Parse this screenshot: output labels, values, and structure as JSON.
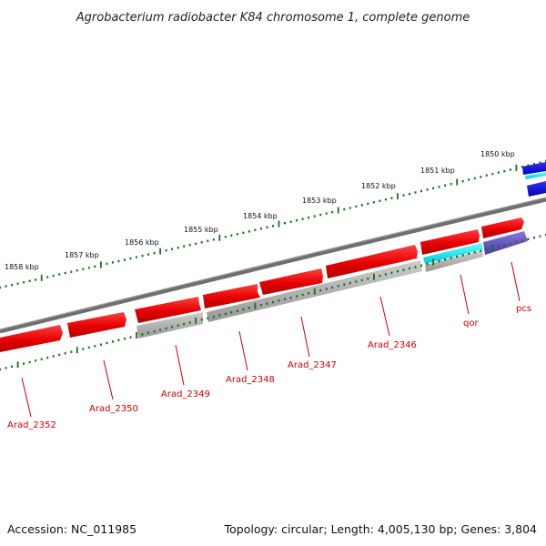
{
  "title": "Agrobacterium radiobacter K84 chromosome 1, complete genome",
  "footer": {
    "accession": "Accession: NC_011985",
    "summary": "Topology: circular; Length: 4,005,130 bp; Genes: 3,804"
  },
  "kbp_labels": [
    "1850 kbp",
    "1851 kbp",
    "1852 kbp",
    "1853 kbp",
    "1854 kbp",
    "1855 kbp",
    "1856 kbp",
    "1857 kbp",
    "1858 kbp"
  ],
  "gene_labels": [
    "Arad_2352",
    "Arad_2350",
    "Arad_2349",
    "Arad_2348",
    "Arad_2347",
    "Arad_2346",
    "qor",
    "pcs"
  ],
  "colors": {
    "gene_red": "#ee0000",
    "gene_gray": "#aaaaaa",
    "gene_cyan": "#00e8f0",
    "gene_blue": "#0000dd",
    "gene_purple": "#6655cc",
    "backbone": "#777777",
    "tick_green": "#1a6e1a",
    "label_red": "#cc0000"
  }
}
